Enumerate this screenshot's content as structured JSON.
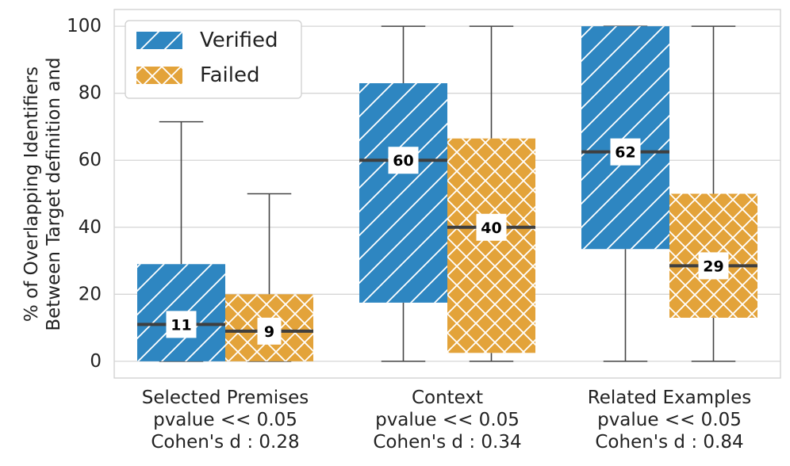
{
  "chart_data": {
    "type": "box",
    "ylabel_lines": [
      "% of Overlapping Identifiers",
      "Between Target definition and"
    ],
    "ylim": [
      -5,
      105
    ],
    "yticks": [
      0,
      20,
      40,
      60,
      80,
      100
    ],
    "grid": true,
    "legend_placement": "top-left",
    "groups": [
      {
        "lines": [
          "Selected Premises",
          "pvalue << 0.05",
          "Cohen's d : 0.28"
        ]
      },
      {
        "lines": [
          "Context",
          "pvalue << 0.05",
          "Cohen's d : 0.34"
        ]
      },
      {
        "lines": [
          "Related Examples",
          "pvalue << 0.05",
          "Cohen's d : 0.84"
        ]
      }
    ],
    "series": [
      {
        "name": "Verified",
        "color": "#2e86c1",
        "hatch": "diagonal",
        "boxes": [
          {
            "min": 0,
            "q1": 0,
            "median": 11,
            "q3": 29,
            "max": 71.5,
            "label": "11"
          },
          {
            "min": 0,
            "q1": 17.5,
            "median": 60,
            "q3": 83,
            "max": 100,
            "label": "60"
          },
          {
            "min": 0,
            "q1": 33.5,
            "median": 62.5,
            "q3": 100,
            "max": 100,
            "label": "62"
          }
        ]
      },
      {
        "name": "Failed",
        "color": "#e3a33a",
        "hatch": "crosshatch",
        "boxes": [
          {
            "min": 0,
            "q1": 0,
            "median": 9,
            "q3": 20,
            "max": 50,
            "label": "9"
          },
          {
            "min": 0,
            "q1": 2.5,
            "median": 40,
            "q3": 66.5,
            "max": 100,
            "label": "40"
          },
          {
            "min": 0,
            "q1": 13,
            "median": 28.5,
            "q3": 50,
            "max": 100,
            "label": "29"
          }
        ]
      }
    ]
  }
}
